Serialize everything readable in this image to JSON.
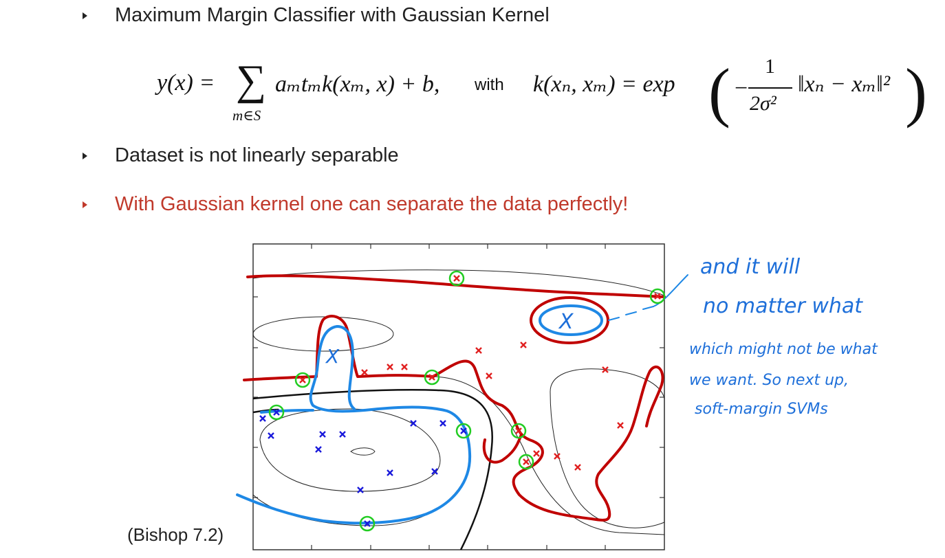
{
  "bullets": [
    {
      "text": "Maximum Margin Classifier with Gaussian Kernel"
    },
    {
      "text": "Dataset is not linearly separable"
    },
    {
      "text": "With Gaussian kernel one can separate the data perfectly!"
    }
  ],
  "equation": {
    "lhs": "y(x) =",
    "sigma_symbol": "∑",
    "sum_index": "m∈S",
    "terms": "aₘtₘk(xₘ, x) + b,",
    "with_word": "with",
    "kernel_lhs": "k(xₙ, xₘ) = exp",
    "fraction_num": "1",
    "fraction_den": "2σ²",
    "norm_expr": "‖xₙ − xₘ‖²"
  },
  "citation": "(Bishop 7.2)",
  "annotation": {
    "line1": "and it will",
    "line2": "no matter what",
    "line3": "which might not be what",
    "line4": "we want. So next up,",
    "line5": "soft-margin SVMs",
    "circled_mark": "X",
    "blue_mark": "X"
  },
  "colors": {
    "text": "#222222",
    "highlight_red": "#c0392b",
    "ink_red": "#c00000",
    "ink_blue": "#1e88e5",
    "support_vector_green": "#22cc22",
    "class_blue": "#1a1adb",
    "class_red": "#e02020"
  }
}
